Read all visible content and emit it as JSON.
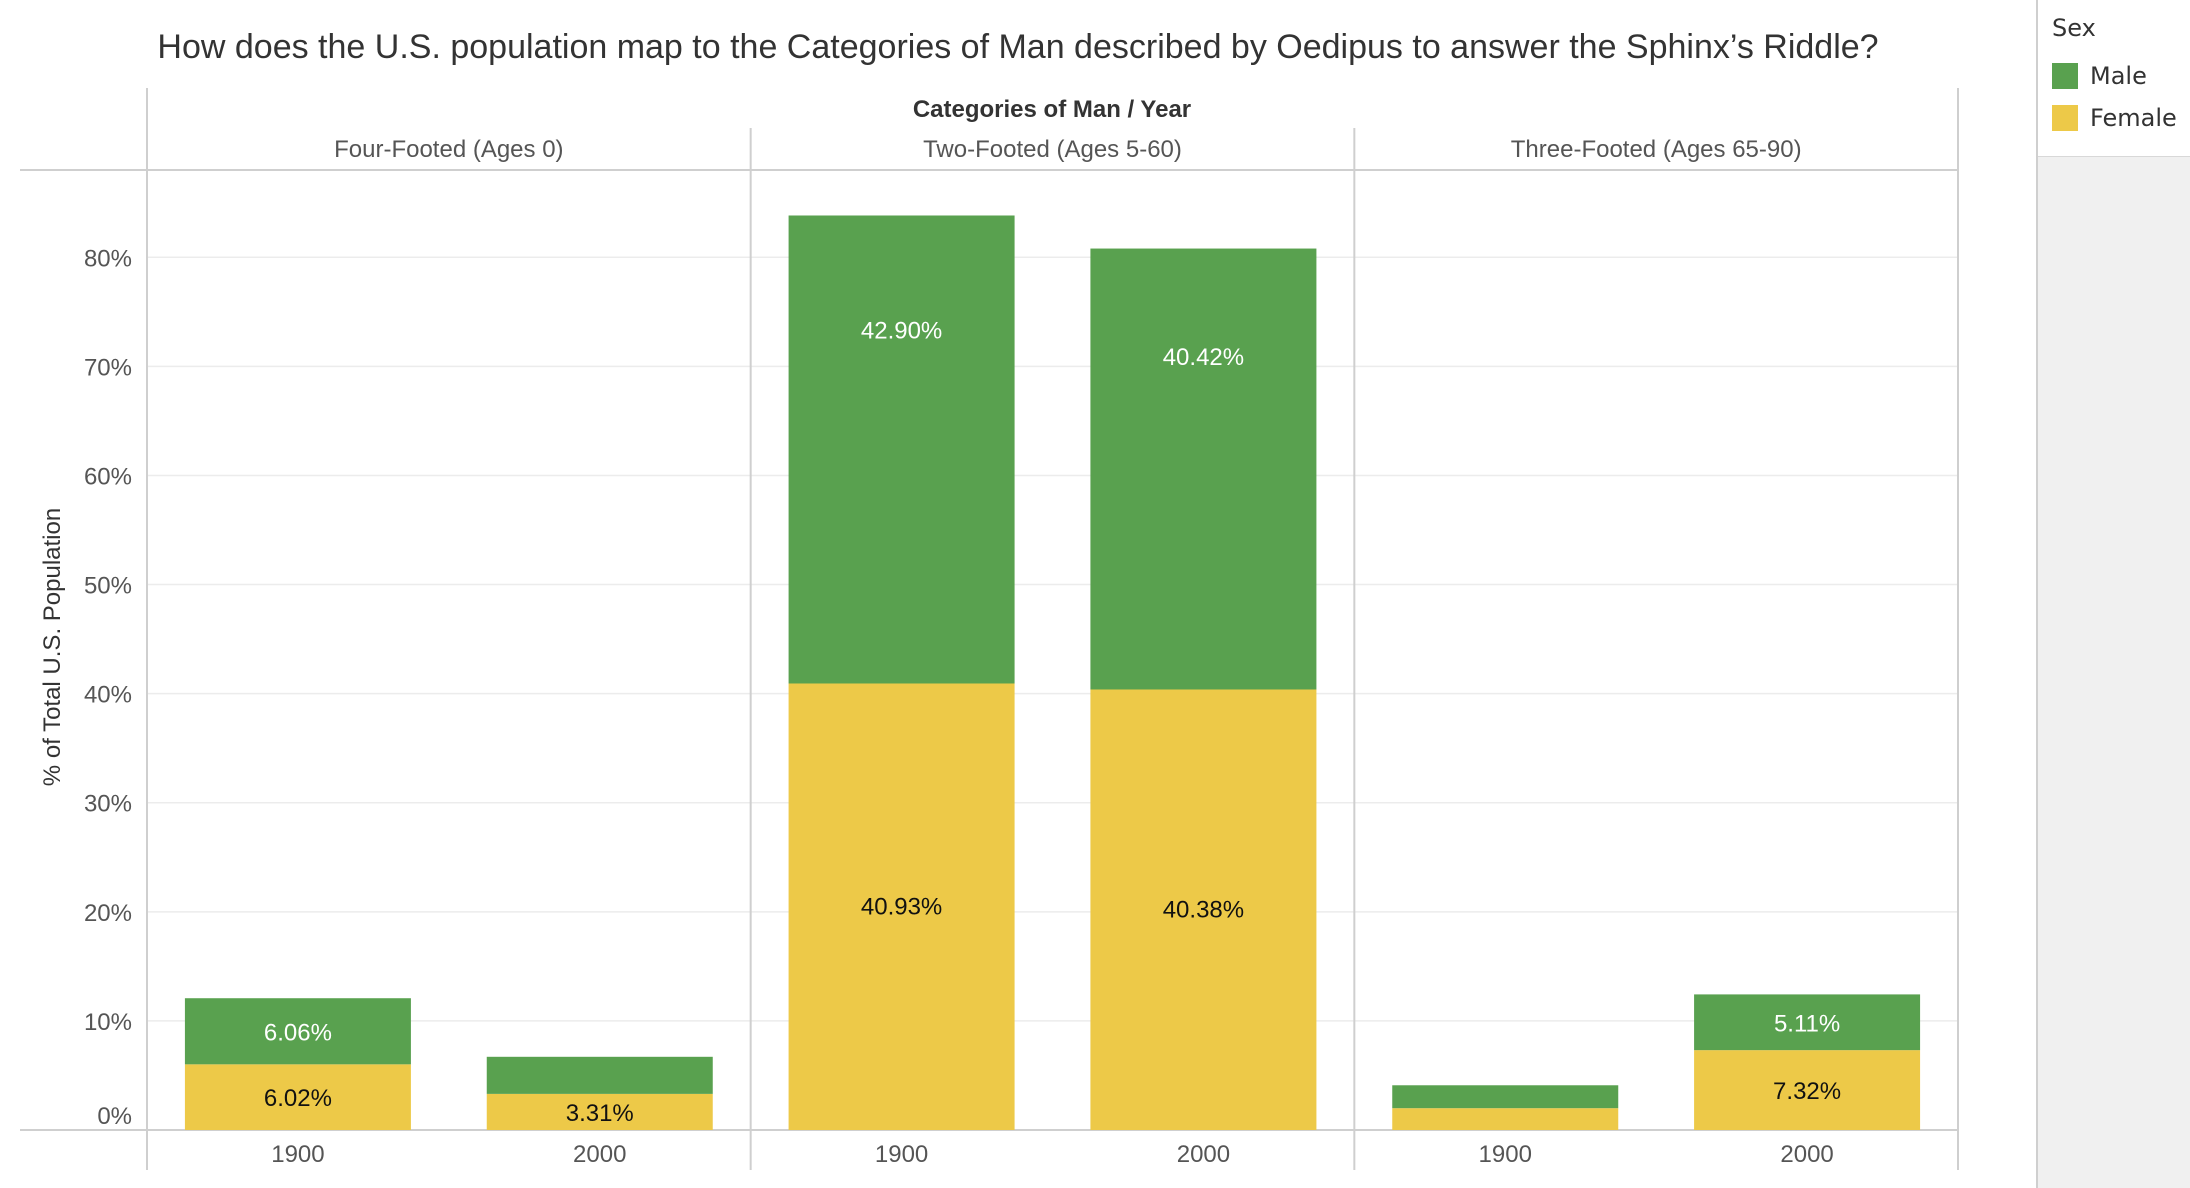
{
  "chart_data": {
    "type": "bar",
    "stacked": true,
    "title": "How does the U.S. population map to the Categories of Man described by Oedipus to answer the Sphinx’s Riddle?",
    "column_header": "Categories of Man / Year",
    "ylabel": "% of Total U.S. Population",
    "ylim": [
      0,
      0.88
    ],
    "yticks": [
      0,
      0.1,
      0.2,
      0.3,
      0.4,
      0.5,
      0.6,
      0.7,
      0.8
    ],
    "ytick_labels": [
      "0%",
      "10%",
      "20%",
      "30%",
      "40%",
      "50%",
      "60%",
      "70%",
      "80%"
    ],
    "grid": true,
    "legend": {
      "title": "Sex",
      "placement": "right",
      "items": [
        {
          "name": "Male",
          "color": "#59a14f"
        },
        {
          "name": "Female",
          "color": "#edc948"
        }
      ]
    },
    "panels": [
      {
        "label": "Four-Footed (Ages 0)",
        "bars": [
          {
            "x": "1900",
            "female": 0.0602,
            "male": 0.0606,
            "female_label": "6.02%",
            "male_label": "6.06%"
          },
          {
            "x": "2000",
            "female": 0.0331,
            "male": 0.034,
            "female_label": "3.31%",
            "male_label": ""
          }
        ]
      },
      {
        "label": "Two-Footed (Ages 5-60)",
        "bars": [
          {
            "x": "1900",
            "female": 0.4093,
            "male": 0.429,
            "female_label": "40.93%",
            "male_label": "42.90%"
          },
          {
            "x": "2000",
            "female": 0.4038,
            "male": 0.4042,
            "female_label": "40.38%",
            "male_label": "40.42%"
          }
        ]
      },
      {
        "label": "Three-Footed (Ages 65-90)",
        "bars": [
          {
            "x": "1900",
            "female": 0.02,
            "male": 0.021,
            "female_label": "",
            "male_label": ""
          },
          {
            "x": "2000",
            "female": 0.0732,
            "male": 0.0511,
            "female_label": "7.32%",
            "male_label": "5.11%"
          }
        ]
      }
    ]
  }
}
